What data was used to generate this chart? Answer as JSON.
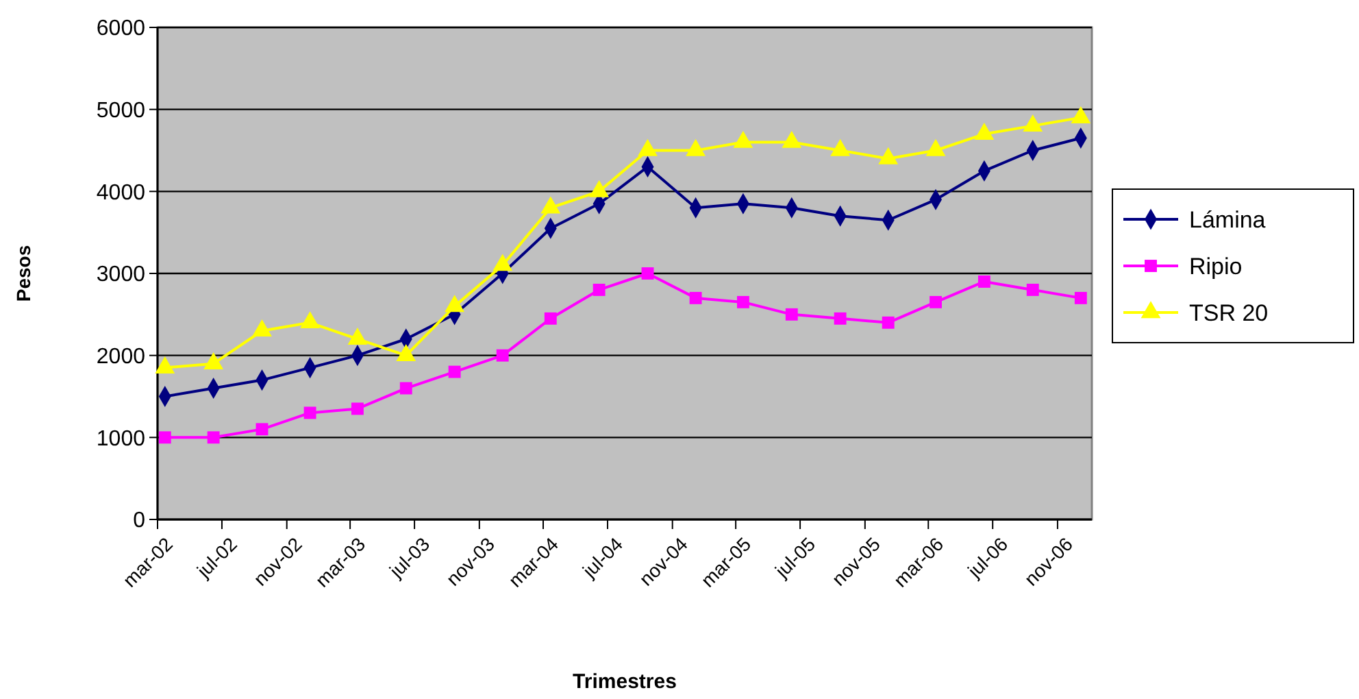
{
  "chart_data": {
    "type": "line",
    "xlabel": "Trimestres",
    "ylabel": "Pesos",
    "x": [
      "2002-03-15",
      "2002-06-15",
      "2002-09-15",
      "2002-12-15",
      "2003-03-15",
      "2003-06-15",
      "2003-09-15",
      "2003-12-15",
      "2004-03-15",
      "2004-06-15",
      "2004-09-15",
      "2004-12-15",
      "2005-03-15",
      "2005-06-15",
      "2005-09-15",
      "2005-12-15",
      "2006-03-15",
      "2006-06-15",
      "2006-09-15",
      "2006-12-15"
    ],
    "series": [
      {
        "name": "Lámina",
        "color": "#000080",
        "marker": "diamond",
        "values": [
          1500,
          1600,
          1700,
          1850,
          2000,
          2200,
          2500,
          3000,
          3550,
          3850,
          4300,
          3800,
          3850,
          3800,
          3700,
          3650,
          3900,
          4250,
          4500,
          4650
        ]
      },
      {
        "name": "Ripio",
        "color": "#ff00ff",
        "marker": "square",
        "values": [
          1000,
          1000,
          1100,
          1300,
          1350,
          1600,
          1800,
          2000,
          2450,
          2800,
          3000,
          2700,
          2650,
          2500,
          2450,
          2400,
          2650,
          2900,
          2800,
          2700
        ]
      },
      {
        "name": "TSR 20",
        "color": "#ffff00",
        "marker": "triangle",
        "values": [
          1850,
          1900,
          2300,
          2400,
          2200,
          2000,
          2600,
          3100,
          3800,
          4000,
          4500,
          4500,
          4600,
          4600,
          4500,
          4400,
          4500,
          4700,
          4800,
          4900
        ]
      }
    ],
    "xlim": [
      "2002-03-01",
      "2007-01-05"
    ],
    "xticks": [
      {
        "value": "2002-03-01",
        "label": "mar-02"
      },
      {
        "value": "2002-07-01",
        "label": "jul-02"
      },
      {
        "value": "2002-11-01",
        "label": "nov-02"
      },
      {
        "value": "2003-03-01",
        "label": "mar-03"
      },
      {
        "value": "2003-07-01",
        "label": "jul-03"
      },
      {
        "value": "2003-11-01",
        "label": "nov-03"
      },
      {
        "value": "2004-03-01",
        "label": "mar-04"
      },
      {
        "value": "2004-07-01",
        "label": "jul-04"
      },
      {
        "value": "2004-11-01",
        "label": "nov-04"
      },
      {
        "value": "2005-03-01",
        "label": "mar-05"
      },
      {
        "value": "2005-07-01",
        "label": "jul-05"
      },
      {
        "value": "2005-11-01",
        "label": "nov-05"
      },
      {
        "value": "2006-03-01",
        "label": "mar-06"
      },
      {
        "value": "2006-07-01",
        "label": "jul-06"
      },
      {
        "value": "2006-11-01",
        "label": "nov-06"
      }
    ],
    "ylim": [
      0,
      6000
    ],
    "yticks": [
      0,
      1000,
      2000,
      3000,
      4000,
      5000,
      6000
    ],
    "grid": "y",
    "legend": "right",
    "line_style": "solid"
  }
}
